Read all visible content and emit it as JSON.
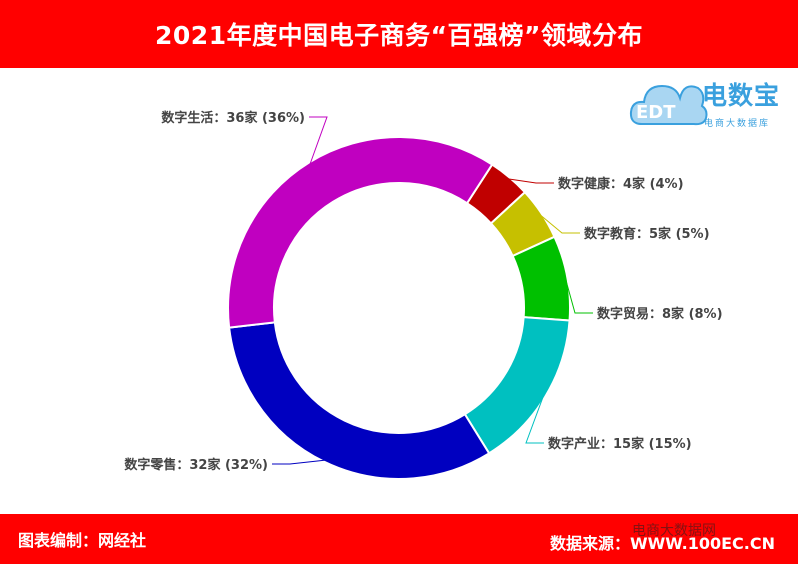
{
  "header": {
    "title": "2021年度中国电子商务“百强榜”领域分布"
  },
  "footer": {
    "left": "图表编制：网经社",
    "right": "数据来源：WWW.100EC.CN",
    "watermark": "电商大数据网"
  },
  "logo": {
    "brand": "电数宝",
    "sub": "电商大数据库",
    "mark": "EDT"
  },
  "chart_data": {
    "type": "pie",
    "variant": "donut",
    "title": "2021年度中国电子商务“百强榜”领域分布",
    "unit": "家",
    "series": [
      {
        "name": "数字健康",
        "value": 4,
        "percent": 4,
        "color": "#c00000",
        "label": "数字健康：4家 (4%)"
      },
      {
        "name": "数字教育",
        "value": 5,
        "percent": 5,
        "color": "#c6c000",
        "label": "数字教育：5家 (5%)"
      },
      {
        "name": "数字贸易",
        "value": 8,
        "percent": 8,
        "color": "#00c000",
        "label": "数字贸易：8家 (8%)"
      },
      {
        "name": "数字产业",
        "value": 15,
        "percent": 15,
        "color": "#00c0c0",
        "label": "数字产业：15家 (15%)"
      },
      {
        "name": "数字零售",
        "value": 32,
        "percent": 32,
        "color": "#0000c0",
        "label": "数字零售：32家 (32%)"
      },
      {
        "name": "数字生活",
        "value": 36,
        "percent": 36,
        "color": "#c000c0",
        "label": "数字生活：36家 (36%)"
      }
    ]
  }
}
